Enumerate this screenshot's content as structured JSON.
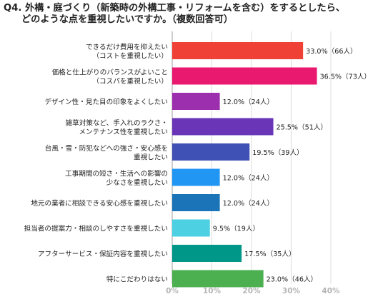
{
  "title": {
    "line1": "Q4. 外構・庭づくり（新築時の外構工事・リフォームを含む）をするとしたら、",
    "line2": "どのような点を重視したいですか。（複数回答可）"
  },
  "chart_data": {
    "type": "bar",
    "orientation": "horizontal",
    "title": "Q4. 外構・庭づくり（新築時の外構工事・リフォームを含む）をするとしたら、どのような点を重視したいですか。（複数回答可）",
    "categories": [
      [
        "できるだけ費用を抑えたい",
        "（コストを重視したい）"
      ],
      [
        "価格と仕上がりのバランスがよいこと",
        "（コスパを重視したい）"
      ],
      [
        "デザイン性・見た目の印象をよくしたい"
      ],
      [
        "雑草対策など、手入れのラクさ・",
        "メンテナンス性を重視したい"
      ],
      [
        "台風・雪・防犯などへの強さ・安心感を",
        "重視したい"
      ],
      [
        "工事期間の短さ・生活への影響の",
        "少なさを重視したい"
      ],
      [
        "地元の業者に相談できる安心感を重視したい"
      ],
      [
        "担当者の提案力・相談のしやすさを重視したい"
      ],
      [
        "アフターサービス・保証内容を重視したい"
      ],
      [
        "特にこだわりはない"
      ]
    ],
    "values": [
      33.0,
      36.5,
      12.0,
      25.5,
      19.5,
      12.0,
      12.0,
      9.5,
      17.5,
      23.0
    ],
    "data_labels": [
      "33.0%（66人）",
      "36.5%（73人）",
      "12.0%（24人）",
      "25.5%（51人）",
      "19.5%（39人）",
      "12.0%（24人）",
      "12.0%（24人）",
      "9.5%（19人）",
      "17.5%（35人）",
      "23.0%（46人）"
    ],
    "colors": [
      "#ef4136",
      "#e8196f",
      "#9c2fae",
      "#6a35b6",
      "#3f51b5",
      "#2196f3",
      "#1b74b8",
      "#4dd0e1",
      "#009688",
      "#4caf50"
    ],
    "xlim": [
      0,
      40
    ],
    "xticks": [
      "0%",
      "10%",
      "20%",
      "30%",
      "40%"
    ],
    "grid": true,
    "legend": "none"
  }
}
